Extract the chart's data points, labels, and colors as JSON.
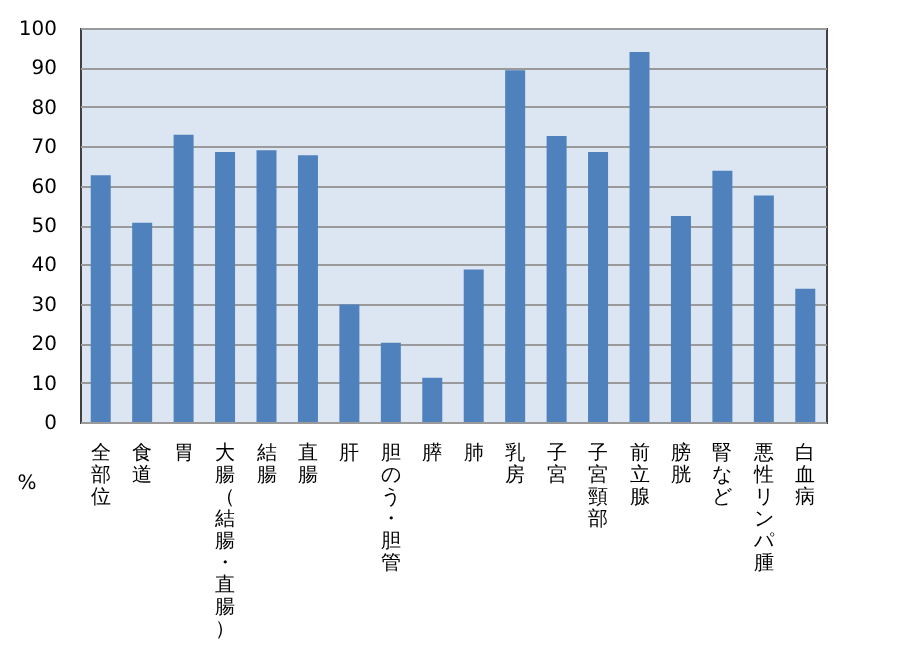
{
  "chart_data": {
    "type": "bar",
    "ylabel": "%",
    "categories": [
      "全部位",
      "食道",
      "胃",
      "大腸（結腸・直腸）",
      "結腸",
      "直腸",
      "肝",
      "胆のう・胆管",
      "膵",
      "肺",
      "乳房",
      "子宮",
      "子宮頸部",
      "前立腺",
      "膀胱",
      "腎など",
      "悪性リンパ腫",
      "白血病"
    ],
    "values": [
      62.6,
      50.6,
      72.9,
      68.5,
      69.0,
      67.7,
      29.8,
      20.1,
      11.2,
      38.7,
      89.3,
      72.6,
      68.5,
      93.9,
      52.3,
      63.8,
      57.5,
      33.8
    ],
    "color": "#4f81bd",
    "ylim": [
      0,
      100
    ],
    "yticks": [
      0,
      10,
      20,
      30,
      40,
      50,
      60,
      70,
      80,
      90,
      100
    ],
    "grid": "y"
  }
}
